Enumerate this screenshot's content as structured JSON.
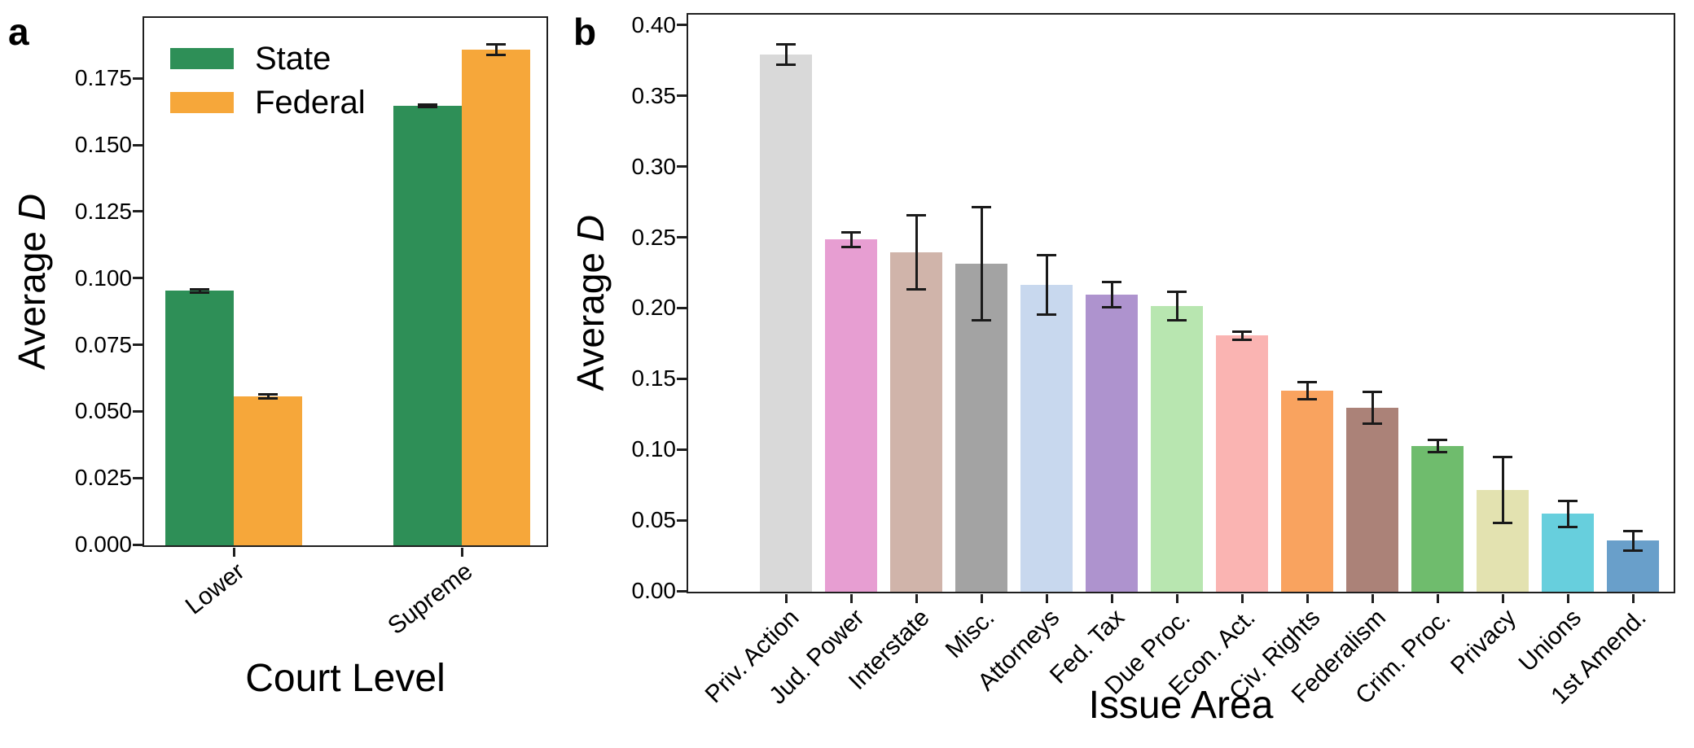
{
  "panels": {
    "a": {
      "letter": "a",
      "xlabel": "Court Level",
      "ylabel": "Average D"
    },
    "b": {
      "letter": "b",
      "xlabel": "Issue Area",
      "ylabel": "Average D"
    }
  },
  "chart_data": [
    {
      "id": "a",
      "type": "bar",
      "title": "",
      "xlabel": "Court Level",
      "ylabel": "Average D",
      "categories": [
        "Lower",
        "Supreme"
      ],
      "series": [
        {
          "name": "State",
          "color": "#2e8f57",
          "values": [
            0.0955,
            0.165
          ],
          "errors": [
            0.001,
            0.001
          ]
        },
        {
          "name": "Federal",
          "color": "#f6a73a",
          "values": [
            0.056,
            0.186
          ],
          "errors": [
            0.0012,
            0.0025
          ]
        }
      ],
      "ylim": [
        0,
        0.1977
      ],
      "yticks": [
        0,
        0.025,
        0.05,
        0.075,
        0.1,
        0.125,
        0.15,
        0.175
      ],
      "ytick_labels": [
        "0.000",
        "0.025",
        "0.050",
        "0.075",
        "0.100",
        "0.125",
        "0.150",
        "0.175"
      ],
      "legend_position": "upper left",
      "grid": false
    },
    {
      "id": "b",
      "type": "bar",
      "title": "",
      "xlabel": "Issue Area",
      "ylabel": "Average D",
      "categories": [
        "Priv. Action",
        "Jud. Power",
        "Interstate",
        "Misc.",
        "Attorneys",
        "Fed. Tax",
        "Due Proc.",
        "Econ. Act.",
        "Civ. Rights",
        "Federalism",
        "Crim. Proc.",
        "Privacy",
        "Unions",
        "1st Amend."
      ],
      "values": [
        0.38,
        0.249,
        0.24,
        0.232,
        0.217,
        0.21,
        0.202,
        0.181,
        0.142,
        0.13,
        0.103,
        0.072,
        0.055,
        0.036
      ],
      "errors": [
        0.008,
        0.006,
        0.027,
        0.041,
        0.022,
        0.01,
        0.011,
        0.004,
        0.007,
        0.012,
        0.005,
        0.024,
        0.01,
        0.008
      ],
      "colors": [
        "#d9d9d9",
        "#e79ed2",
        "#d0b4aa",
        "#a3a3a3",
        "#c8d8ee",
        "#ae93ce",
        "#b8e6b0",
        "#fab4b2",
        "#f9a35f",
        "#ab8278",
        "#6fbc6d",
        "#e3e2b0",
        "#67cfdd",
        "#699fca"
      ],
      "ylim": [
        0,
        0.4074
      ],
      "yticks": [
        0,
        0.05,
        0.1,
        0.15,
        0.2,
        0.25,
        0.3,
        0.35,
        0.4
      ],
      "ytick_labels": [
        "0.00",
        "0.05",
        "0.10",
        "0.15",
        "0.20",
        "0.25",
        "0.30",
        "0.35",
        "0.40"
      ],
      "grid": false
    }
  ]
}
